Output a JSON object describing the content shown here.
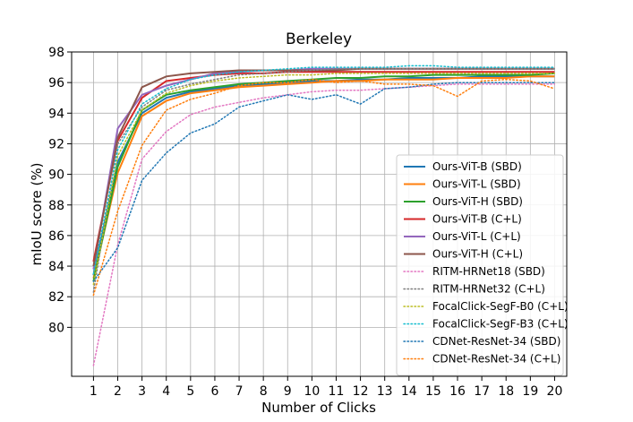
{
  "chart_data": {
    "type": "line",
    "title": "Berkeley",
    "xlabel": "Number of Clicks",
    "ylabel": "mIoU score (%)",
    "x": [
      1,
      2,
      3,
      4,
      5,
      6,
      7,
      8,
      9,
      10,
      11,
      12,
      13,
      14,
      15,
      16,
      17,
      18,
      19,
      20
    ],
    "xlim": [
      0.1,
      20.5
    ],
    "ylim": [
      76.8,
      98
    ],
    "yticks": [
      80,
      82,
      84,
      86,
      88,
      90,
      92,
      94,
      96,
      98
    ],
    "grid": true,
    "legend_position": "center-right",
    "series": [
      {
        "name": "Ours-ViT-B (SBD)",
        "color": "#1f77b4",
        "style": "solid",
        "values": [
          83.4,
          90.8,
          94.0,
          95.0,
          95.4,
          95.6,
          95.8,
          95.9,
          96.0,
          96.1,
          96.1,
          96.2,
          96.2,
          96.3,
          96.3,
          96.3,
          96.4,
          96.4,
          96.4,
          96.4
        ]
      },
      {
        "name": "Ours-ViT-L (SBD)",
        "color": "#ff7f0e",
        "style": "solid",
        "values": [
          83.2,
          90.1,
          93.8,
          94.8,
          95.3,
          95.5,
          95.7,
          95.8,
          95.9,
          96.0,
          96.1,
          96.1,
          96.2,
          96.2,
          96.2,
          96.3,
          96.3,
          96.3,
          96.4,
          96.4
        ]
      },
      {
        "name": "Ours-ViT-H (SBD)",
        "color": "#2ca02c",
        "style": "solid",
        "values": [
          83.0,
          90.5,
          94.2,
          95.2,
          95.5,
          95.7,
          95.9,
          96.0,
          96.1,
          96.2,
          96.3,
          96.3,
          96.4,
          96.4,
          96.5,
          96.5,
          96.5,
          96.5,
          96.5,
          96.6
        ]
      },
      {
        "name": "Ours-ViT-B (C+L)",
        "color": "#d62728",
        "style": "solid",
        "values": [
          84.3,
          92.2,
          95.0,
          96.1,
          96.3,
          96.5,
          96.6,
          96.6,
          96.7,
          96.7,
          96.7,
          96.7,
          96.7,
          96.7,
          96.7,
          96.7,
          96.7,
          96.7,
          96.7,
          96.7
        ]
      },
      {
        "name": "Ours-ViT-L (C+L)",
        "color": "#9467bd",
        "style": "solid",
        "values": [
          83.8,
          93.0,
          95.2,
          95.8,
          96.2,
          96.6,
          96.7,
          96.8,
          96.8,
          96.9,
          96.9,
          96.9,
          96.9,
          96.9,
          96.9,
          96.9,
          96.9,
          96.9,
          96.9,
          96.9
        ]
      },
      {
        "name": "Ours-ViT-H (C+L)",
        "color": "#8c564b",
        "style": "solid",
        "values": [
          84.0,
          92.4,
          95.7,
          96.4,
          96.6,
          96.7,
          96.8,
          96.8,
          96.8,
          96.8,
          96.8,
          96.9,
          96.9,
          96.9,
          96.9,
          96.9,
          96.9,
          96.9,
          96.9,
          96.9
        ]
      },
      {
        "name": "RITM-HRNet18 (SBD)",
        "color": "#e377c2",
        "style": "dotted",
        "values": [
          77.5,
          85.4,
          91.0,
          92.8,
          93.9,
          94.4,
          94.7,
          95.0,
          95.2,
          95.4,
          95.5,
          95.5,
          95.6,
          95.7,
          95.8,
          95.9,
          95.9,
          95.9,
          95.9,
          95.9
        ]
      },
      {
        "name": "RITM-HRNet32 (C+L)",
        "color": "#7f7f7f",
        "style": "dotted",
        "values": [
          82.3,
          92.0,
          94.4,
          95.5,
          95.9,
          96.2,
          96.5,
          96.6,
          96.7,
          96.8,
          96.9,
          96.9,
          96.9,
          96.9,
          96.9,
          96.9,
          96.9,
          96.9,
          96.9,
          96.9
        ]
      },
      {
        "name": "FocalClick-SegF-B0 (C+L)",
        "color": "#bcbd22",
        "style": "dotted",
        "values": [
          82.8,
          91.2,
          94.2,
          95.3,
          95.8,
          96.1,
          96.3,
          96.4,
          96.5,
          96.5,
          96.6,
          96.6,
          96.6,
          96.6,
          96.6,
          96.6,
          96.6,
          96.6,
          96.6,
          96.6
        ]
      },
      {
        "name": "FocalClick-SegF-B3 (C+L)",
        "color": "#17becf",
        "style": "dotted",
        "values": [
          83.5,
          91.6,
          94.6,
          95.6,
          96.2,
          96.5,
          96.7,
          96.8,
          96.9,
          97.0,
          97.0,
          97.0,
          97.0,
          97.1,
          97.1,
          97.0,
          97.0,
          97.0,
          97.0,
          97.0
        ]
      },
      {
        "name": "CDNet-ResNet-34 (SBD)",
        "color": "#1f77b4",
        "style": "dotted",
        "values": [
          83.0,
          85.2,
          89.6,
          91.4,
          92.7,
          93.3,
          94.4,
          94.8,
          95.2,
          94.9,
          95.2,
          94.6,
          95.6,
          95.7,
          95.9,
          96.0,
          96.0,
          96.0,
          96.0,
          96.0
        ]
      },
      {
        "name": "CDNet-ResNet-34 (C+L)",
        "color": "#ff7f0e",
        "style": "dotted",
        "values": [
          82.1,
          87.6,
          91.9,
          94.2,
          94.9,
          95.3,
          95.8,
          96.0,
          96.0,
          96.2,
          96.0,
          96.1,
          95.9,
          95.9,
          95.8,
          95.1,
          96.1,
          96.2,
          96.1,
          95.6
        ]
      }
    ]
  }
}
